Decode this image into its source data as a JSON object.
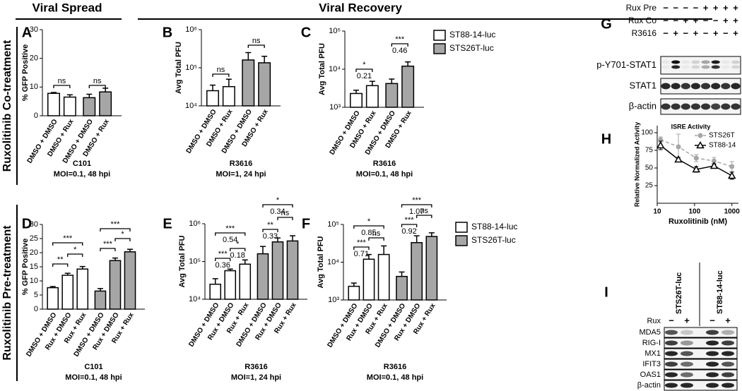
{
  "headers": {
    "viral_spread": "Viral Spread",
    "viral_recovery": "Viral Recovery",
    "co_treatment": "Ruxolitinib Co-treatment",
    "pre_treatment": "Ruxolitinib Pre-treatment"
  },
  "chart_data": [
    {
      "type": "bar",
      "panel": "A",
      "ylabel": "% GFP Positive",
      "categories": [
        "DMSO + DMSO",
        "DMSO + Rux",
        "DMSO + DMSO",
        "DMSO + Rux"
      ],
      "values": [
        7.8,
        6.5,
        6.3,
        8.3
      ],
      "errors": [
        0.3,
        0.8,
        1.2,
        1.3
      ],
      "colors": [
        "#ffffff",
        "#ffffff",
        "#a6a6a6",
        "#a6a6a6"
      ],
      "log_scale": false,
      "ylim": [
        0,
        30
      ],
      "yticks": [
        0,
        10,
        20,
        30
      ],
      "annotations": [
        {
          "label": "ns"
        },
        {
          "label": "ns"
        }
      ],
      "caption": [
        "C101",
        "MOI=0.1, 48 hpi"
      ]
    },
    {
      "type": "bar",
      "panel": "B",
      "ylabel": "Avg Total PFU",
      "categories": [
        "DMSO + DMSO",
        "DMSO + Rux",
        "DMSO + DMSO",
        "DMSO + Rux"
      ],
      "values": [
        25000,
        32000,
        160000,
        135000
      ],
      "errors": [
        10000,
        18000,
        90000,
        65000
      ],
      "colors": [
        "#ffffff",
        "#ffffff",
        "#a6a6a6",
        "#a6a6a6"
      ],
      "log_scale": true,
      "ylim": [
        10000,
        1000000
      ],
      "yticks": [
        {
          "value": 10000,
          "label": "10⁴"
        },
        {
          "value": 100000,
          "label": "10⁵"
        },
        {
          "value": 1000000,
          "label": "10⁶"
        }
      ],
      "annotations": [
        {
          "label": "ns"
        },
        {
          "label": "ns"
        }
      ],
      "caption": [
        "R3616",
        "MOI=1, 24 hpi"
      ]
    },
    {
      "type": "bar",
      "panel": "C",
      "ylabel": "Avg Total PFU",
      "categories": [
        "DMSO + DMSO",
        "DMSO + Rux",
        "DMSO + DMSO",
        "DMSO + Rux"
      ],
      "values": [
        2300,
        3700,
        4200,
        12000
      ],
      "errors": [
        500,
        1100,
        1300,
        3500
      ],
      "colors": [
        "#ffffff",
        "#ffffff",
        "#a6a6a6",
        "#a6a6a6"
      ],
      "log_scale": true,
      "ylim": [
        1000,
        100000
      ],
      "yticks": [
        {
          "value": 1000,
          "label": "10³"
        },
        {
          "value": 10000,
          "label": "10⁴"
        },
        {
          "value": 100000,
          "label": "10⁵"
        }
      ],
      "annotations": [
        {
          "label": "*",
          "note": 0.21
        },
        {
          "label": "***",
          "note": 0.46
        }
      ],
      "caption": [
        "R3616",
        "MOI=0.1, 48 hpi"
      ],
      "legend": [
        {
          "name": "ST88-14-luc",
          "color": "#ffffff"
        },
        {
          "name": "STS26T-luc",
          "color": "#a6a6a6"
        }
      ]
    },
    {
      "type": "bar",
      "panel": "D",
      "ylabel": "% GFP Positive",
      "categories": [
        "DMSO + DMSO",
        "Rux + DMSO",
        "Rux + Rux",
        "DMSO + DMSO",
        "Rux + DMSO",
        "Rux + Rux"
      ],
      "values": [
        7.6,
        12,
        14.2,
        6.4,
        17.2,
        20.3
      ],
      "errors": [
        0.4,
        0.7,
        0.9,
        0.9,
        0.9,
        0.9
      ],
      "colors": [
        "#ffffff",
        "#ffffff",
        "#ffffff",
        "#a6a6a6",
        "#a6a6a6",
        "#a6a6a6"
      ],
      "log_scale": false,
      "ylim": [
        0,
        30
      ],
      "yticks": [
        0,
        5,
        10,
        15,
        20,
        25,
        30
      ],
      "annotations": [
        {
          "label": "**"
        },
        {
          "label": "*"
        },
        {
          "label": "***"
        },
        {
          "label": "***"
        },
        {
          "label": "*"
        },
        {
          "label": "***"
        }
      ],
      "caption": [
        "C101",
        "MOI=0.1, 48 hpi"
      ]
    },
    {
      "type": "bar",
      "panel": "E",
      "ylabel": "Avg Total PFU",
      "categories": [
        "DMSO + DMSO",
        "Rux + DMSO",
        "Rux + Rux",
        "DMSO + DMSO",
        "Rux + DMSO",
        "Rux + Rux"
      ],
      "values": [
        25000,
        57000,
        85000,
        160000,
        330000,
        350000
      ],
      "errors": [
        10000,
        6000,
        25000,
        90000,
        90000,
        130000
      ],
      "colors": [
        "#ffffff",
        "#ffffff",
        "#ffffff",
        "#a6a6a6",
        "#a6a6a6",
        "#a6a6a6"
      ],
      "log_scale": true,
      "ylim": [
        10000,
        1000000
      ],
      "yticks": [
        {
          "value": 10000,
          "label": "10⁴"
        },
        {
          "value": 100000,
          "label": "10⁵"
        },
        {
          "value": 1000000,
          "label": "10⁶"
        }
      ],
      "annotations": [
        {
          "label": "***",
          "note": 0.36
        },
        {
          "label": "*",
          "note": 0.18
        },
        {
          "label": "***",
          "note": 0.54
        },
        {
          "label": "**",
          "note": 0.33
        },
        {
          "label": "ns"
        },
        {
          "label": "*",
          "note": 0.34
        }
      ],
      "caption": [
        "R3616",
        "MOI=1, 24 hpi"
      ]
    },
    {
      "type": "bar",
      "panel": "F",
      "ylabel": "Avg Total PFU",
      "categories": [
        "DMSO + DMSO",
        "Rux + DMSO",
        "Rux + Rux",
        "DMSO + DMSO",
        "Rux + DMSO",
        "Rux + Rux"
      ],
      "values": [
        2300,
        12000,
        16000,
        4200,
        33000,
        48000
      ],
      "errors": [
        500,
        4000,
        11000,
        1300,
        17000,
        12000
      ],
      "colors": [
        "#ffffff",
        "#ffffff",
        "#ffffff",
        "#a6a6a6",
        "#a6a6a6",
        "#a6a6a6"
      ],
      "log_scale": true,
      "ylim": [
        1000,
        100000
      ],
      "yticks": [
        {
          "value": 1000,
          "label": "10³"
        },
        {
          "value": 10000,
          "label": "10⁴"
        },
        {
          "value": 100000,
          "label": "10⁵"
        }
      ],
      "annotations": [
        {
          "label": "***",
          "note": 0.71
        },
        {
          "label": "ns"
        },
        {
          "label": "*",
          "note": 0.85
        },
        {
          "label": "***",
          "note": 0.92
        },
        {
          "label": "ns"
        },
        {
          "label": "***",
          "note": 1.07
        }
      ],
      "caption": [
        "R3616",
        "MOI=0.1, 48 hpi"
      ],
      "legend": [
        {
          "name": "ST88-14-luc",
          "color": "#ffffff"
        },
        {
          "name": "STS26T-luc",
          "color": "#a6a6a6"
        }
      ]
    },
    {
      "type": "line",
      "panel": "H",
      "title": "ISRE Activity",
      "xlabel": "Ruxolitinib (nM)",
      "ylabel": "Relative Normalized Activity",
      "x": [
        12.3,
        37,
        111,
        333,
        1000
      ],
      "x_log_scale": true,
      "xlim": [
        10,
        1500
      ],
      "xticks": [
        10,
        100,
        1000
      ],
      "ylim": [
        0,
        110
      ],
      "yticks": [
        25,
        50,
        75,
        100
      ],
      "legend_position": "upper right",
      "series": [
        {
          "name": "STS26T",
          "color": "#a6a6a6",
          "dashed": true,
          "marker": "circle",
          "values": [
            90,
            80,
            64,
            60,
            52
          ],
          "errors": [
            4,
            18,
            5,
            5,
            7
          ]
        },
        {
          "name": "ST88-14",
          "color": "#000000",
          "dashed": false,
          "marker": "triangle",
          "values": [
            82,
            62,
            48,
            53,
            39
          ],
          "errors": [
            6,
            3,
            4,
            3,
            5
          ]
        }
      ]
    }
  ],
  "blot_g": {
    "panel": "G",
    "conditions": [
      {
        "name": "Rux Pre",
        "signs": [
          "−",
          "−",
          "−",
          "−",
          "+",
          "+",
          "+",
          "+"
        ]
      },
      {
        "name": "Rux Co",
        "signs": [
          "−",
          "−",
          "+",
          "+",
          "−",
          "−",
          "+",
          "+"
        ]
      },
      {
        "name": "R3616",
        "signs": [
          "−",
          "+",
          "−",
          "+",
          "−",
          "+",
          "−",
          "+"
        ]
      }
    ],
    "bands": [
      "p-Y701-STAT1",
      "STAT1",
      "β-actin"
    ]
  },
  "blot_i": {
    "panel": "I",
    "groups": [
      "STS26T-luc",
      "ST88-14-luc"
    ],
    "treatment": "Rux",
    "signs": [
      "−",
      "+",
      "−",
      "+"
    ],
    "bands": [
      "MDA5",
      "RIG-I",
      "MX1",
      "IFIT3",
      "OAS1",
      "β-actin"
    ]
  }
}
